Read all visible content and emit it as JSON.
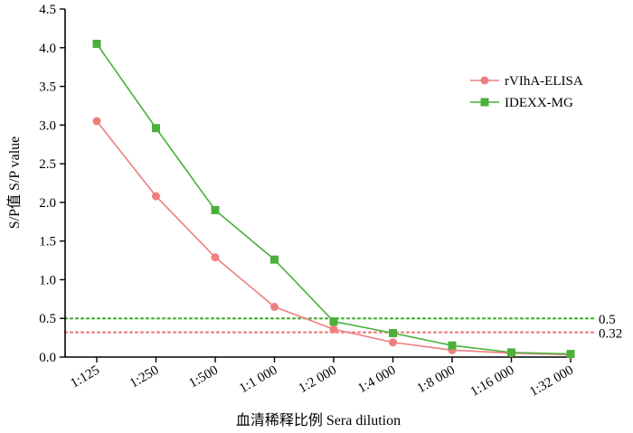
{
  "chart_data": {
    "type": "line",
    "categories": [
      "1:125",
      "1:250",
      "1:500",
      "1:1 000",
      "1:2 000",
      "1:4 000",
      "1:8 000",
      "1:16 000",
      "1:32 000"
    ],
    "xlabel": "血清稀释比例 Sera dilution",
    "ylabel": "S/P值 S/P value",
    "ylim": [
      0,
      4.5
    ],
    "yticks": [
      "0.0",
      "0.5",
      "1.0",
      "1.5",
      "2.0",
      "2.5",
      "3.0",
      "3.5",
      "4.0",
      "4.5"
    ],
    "grid": false,
    "legend_position": "top-right",
    "series": [
      {
        "name": "rVIhA-ELISA",
        "color": "#ee7f7f",
        "marker": "circle",
        "values": [
          3.05,
          2.08,
          1.29,
          0.65,
          0.36,
          0.19,
          0.09,
          0.05,
          0.03
        ]
      },
      {
        "name": "IDEXX-MG",
        "color": "#4bb03b",
        "marker": "square",
        "values": [
          4.05,
          2.96,
          1.9,
          1.26,
          0.46,
          0.31,
          0.15,
          0.06,
          0.04
        ]
      }
    ],
    "reference_lines": [
      {
        "value": 0.5,
        "label": "0.5",
        "color": "#4bb03b",
        "style": "dotted"
      },
      {
        "value": 0.32,
        "label": "0.32",
        "color": "#ee7f7f",
        "style": "dotted"
      }
    ]
  }
}
